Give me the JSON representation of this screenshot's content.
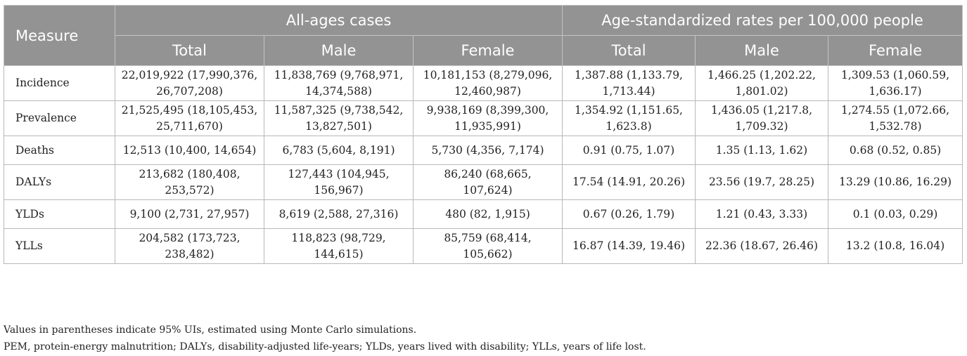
{
  "header": {
    "measure": "Measure",
    "group_all_ages": "All-ages cases",
    "group_age_std": "Age-standardized rates per 100,000 people",
    "sub_columns": [
      "Total",
      "Male",
      "Female",
      "Total",
      "Male",
      "Female"
    ]
  },
  "rows": [
    {
      "measure": "Incidence",
      "cells": [
        "22,019,922 (17,990,376, 26,707,208)",
        "11,838,769 (9,768,971, 14,374,588)",
        "10,181,153 (8,279,096, 12,460,987)",
        "1,387.88 (1,133.79, 1,713.44)",
        "1,466.25 (1,202.22, 1,801.02)",
        "1,309.53 (1,060.59, 1,636.17)"
      ]
    },
    {
      "measure": "Prevalence",
      "cells": [
        "21,525,495 (18,105,453, 25,711,670)",
        "11,587,325 (9,738,542, 13,827,501)",
        "9,938,169 (8,399,300, 11,935,991)",
        "1,354.92 (1,151.65, 1,623.8)",
        "1,436.05 (1,217.8, 1,709.32)",
        "1,274.55 (1,072.66, 1,532.78)"
      ]
    },
    {
      "measure": "Deaths",
      "cells": [
        "12,513 (10,400, 14,654)",
        "6,783 (5,604, 8,191)",
        "5,730 (4,356, 7,174)",
        "0.91 (0.75, 1.07)",
        "1.35 (1.13, 1.62)",
        "0.68 (0.52, 0.85)"
      ]
    },
    {
      "measure": "DALYs",
      "cells": [
        "213,682 (180,408, 253,572)",
        "127,443 (104,945, 156,967)",
        "86,240 (68,665, 107,624)",
        "17.54 (14.91, 20.26)",
        "23.56 (19.7, 28.25)",
        "13.29 (10.86, 16.29)"
      ]
    },
    {
      "measure": "YLDs",
      "cells": [
        "9,100 (2,731, 27,957)",
        "8,619 (2,588, 27,316)",
        "480 (82, 1,915)",
        "0.67 (0.26, 1.79)",
        "1.21 (0.43, 3.33)",
        "0.1 (0.03, 0.29)"
      ]
    },
    {
      "measure": "YLLs",
      "cells": [
        "204,582 (173,723, 238,482)",
        "118,823 (98,729, 144,615)",
        "85,759 (68,414, 105,662)",
        "16.87 (14.39, 19.46)",
        "22.36 (18.67, 26.46)",
        "13.2 (10.8, 16.04)"
      ]
    }
  ],
  "footnotes": [
    "Values in parentheses indicate 95% UIs, estimated using Monte Carlo simulations.",
    "PEM, protein-energy malnutrition; DALYs, disability-adjusted life-years; YLDs, years lived with disability; YLLs, years of life lost."
  ]
}
